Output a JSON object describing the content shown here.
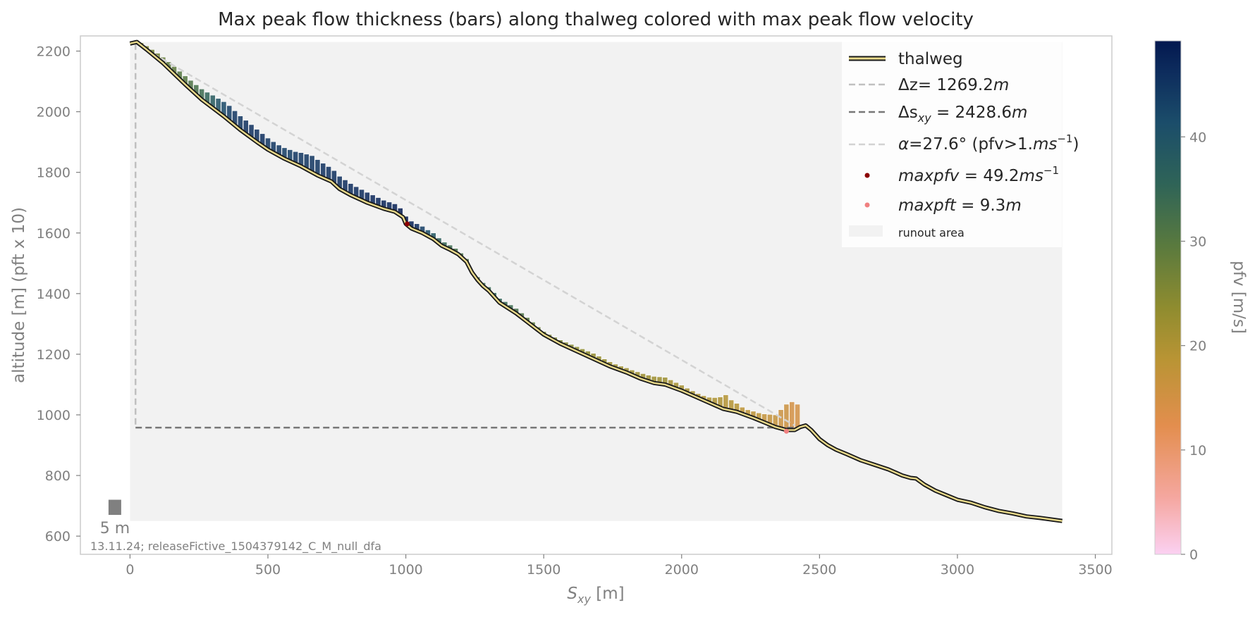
{
  "chart_data": {
    "type": "line",
    "title": "Max peak flow thickness (bars) along thalweg colored with max peak flow velocity",
    "xlabel": "S_xy [m]",
    "ylabel": "altitude [m] (pft x 10)",
    "xlim": [
      -180,
      3560
    ],
    "ylim": [
      540,
      2250
    ],
    "x_ticks": [
      "0",
      "500",
      "1000",
      "1500",
      "2000",
      "2500",
      "3000",
      "3500"
    ],
    "y_ticks": [
      "600",
      "800",
      "1000",
      "1200",
      "1400",
      "1600",
      "1800",
      "2000",
      "2200"
    ],
    "grid": false,
    "legend_position": "top-right",
    "runout_area": {
      "x": [
        0,
        3380
      ],
      "y": [
        650,
        2230
      ],
      "label": "runout area"
    },
    "thalweg": {
      "label": "thalweg",
      "x": [
        0,
        25,
        60,
        120,
        200,
        260,
        340,
        400,
        460,
        500,
        560,
        620,
        680,
        730,
        760,
        800,
        860,
        920,
        960,
        990,
        1000,
        1020,
        1060,
        1100,
        1130,
        1160,
        1190,
        1220,
        1240,
        1260,
        1280,
        1300,
        1340,
        1400,
        1450,
        1500,
        1560,
        1620,
        1680,
        1740,
        1800,
        1850,
        1900,
        1940,
        2000,
        2050,
        2100,
        2150,
        2200,
        2260,
        2300,
        2340,
        2380,
        2410,
        2430,
        2450,
        2470,
        2500,
        2530,
        2560,
        2600,
        2650,
        2700,
        2750,
        2800,
        2830,
        2850,
        2880,
        2920,
        2960,
        3000,
        3050,
        3100,
        3150,
        3200,
        3250,
        3300,
        3380
      ],
      "y": [
        2225,
        2230,
        2205,
        2160,
        2090,
        2040,
        1985,
        1940,
        1900,
        1875,
        1845,
        1820,
        1790,
        1770,
        1745,
        1725,
        1700,
        1680,
        1670,
        1652,
        1630,
        1615,
        1600,
        1580,
        1558,
        1545,
        1530,
        1505,
        1470,
        1445,
        1425,
        1410,
        1370,
        1335,
        1300,
        1265,
        1235,
        1210,
        1185,
        1160,
        1140,
        1120,
        1105,
        1100,
        1080,
        1060,
        1040,
        1020,
        1010,
        990,
        975,
        960,
        950,
        950,
        960,
        965,
        950,
        920,
        900,
        885,
        870,
        850,
        835,
        820,
        800,
        792,
        790,
        770,
        750,
        735,
        720,
        710,
        695,
        683,
        675,
        665,
        660,
        650
      ]
    },
    "bars": {
      "x": [
        20,
        40,
        60,
        80,
        100,
        120,
        140,
        160,
        180,
        200,
        220,
        240,
        260,
        280,
        300,
        320,
        340,
        360,
        380,
        400,
        420,
        440,
        460,
        480,
        500,
        520,
        540,
        560,
        580,
        600,
        620,
        640,
        660,
        680,
        700,
        720,
        740,
        760,
        780,
        800,
        820,
        840,
        860,
        880,
        900,
        920,
        940,
        960,
        980,
        1000,
        1020,
        1040,
        1060,
        1080,
        1100,
        1120,
        1140,
        1160,
        1180,
        1200,
        1220,
        1260,
        1280,
        1300,
        1320,
        1340,
        1360,
        1380,
        1400,
        1420,
        1440,
        1460,
        1480,
        1500,
        1520,
        1540,
        1560,
        1580,
        1600,
        1620,
        1640,
        1660,
        1680,
        1700,
        1720,
        1740,
        1760,
        1780,
        1800,
        1820,
        1840,
        1860,
        1880,
        1900,
        1920,
        1940,
        1960,
        1980,
        2000,
        2020,
        2040,
        2060,
        2080,
        2100,
        2120,
        2140,
        2160,
        2180,
        2200,
        2220,
        2240,
        2260,
        2280,
        2300,
        2320,
        2340,
        2360,
        2380,
        2400,
        2420
      ],
      "pft": [
        0.4,
        0.8,
        1.2,
        1.5,
        1.8,
        2.0,
        2.2,
        2.4,
        2.6,
        2.8,
        3.0,
        3.2,
        3.5,
        3.8,
        4.2,
        4.5,
        4.8,
        5.0,
        4.8,
        4.6,
        4.5,
        4.4,
        4.2,
        4.0,
        3.8,
        3.6,
        3.5,
        3.6,
        3.8,
        4.0,
        4.5,
        5.0,
        5.5,
        5.2,
        4.8,
        4.5,
        4.4,
        4.2,
        4.0,
        3.8,
        3.6,
        3.5,
        3.4,
        3.2,
        3.0,
        2.8,
        2.7,
        2.6,
        2.4,
        2.5,
        2.4,
        2.3,
        2.2,
        2.0,
        2.0,
        1.8,
        1.6,
        1.5,
        1.4,
        1.2,
        1.0,
        1.0,
        1.1,
        1.2,
        1.3,
        1.4,
        1.5,
        1.6,
        1.6,
        1.5,
        1.4,
        1.3,
        1.1,
        1.0,
        1.0,
        1.1,
        1.2,
        1.3,
        1.4,
        1.5,
        1.6,
        1.7,
        1.8,
        1.7,
        1.6,
        1.5,
        1.4,
        1.4,
        1.5,
        1.6,
        1.8,
        1.9,
        2.0,
        2.2,
        2.3,
        2.4,
        2.2,
        2.0,
        1.8,
        1.6,
        1.5,
        1.4,
        1.5,
        1.8,
        2.5,
        3.5,
        4.8,
        3.5,
        2.8,
        2.2,
        2.0,
        2.2,
        2.4,
        2.8,
        3.4,
        4.0,
        6.2,
        8.5,
        9.3,
        8.0
      ],
      "pfv": [
        22,
        23,
        24,
        25,
        25,
        26,
        27,
        27,
        28,
        28,
        29,
        30,
        31,
        33,
        35,
        37,
        39,
        41,
        42,
        42,
        43,
        43,
        43,
        43,
        42,
        42,
        42,
        41,
        41,
        42,
        42,
        42,
        42,
        42,
        43,
        43,
        43,
        43,
        44,
        44,
        44,
        44,
        45,
        45,
        45,
        46,
        46,
        47,
        48,
        49,
        47,
        44,
        41,
        38,
        36,
        34,
        32,
        31,
        30,
        30,
        29,
        30,
        31,
        32,
        33,
        33,
        32,
        31,
        30,
        29,
        28,
        27,
        26,
        25,
        24,
        24,
        24,
        23,
        23,
        22,
        22,
        22,
        21,
        21,
        21,
        20,
        20,
        20,
        20,
        20,
        20,
        20,
        20,
        20,
        20,
        20,
        19,
        19,
        19,
        19,
        19,
        18,
        18,
        18,
        18,
        18,
        17,
        17,
        17,
        16,
        16,
        16,
        16,
        15,
        15,
        15,
        14,
        14,
        13,
        13
      ]
    },
    "delta_z": {
      "label": "Δz = 1269.2m",
      "x": [
        20,
        20
      ],
      "y": [
        2225,
        958
      ]
    },
    "delta_s": {
      "label": "Δs_xy = 2428.6m",
      "x": [
        20,
        2420
      ],
      "y": [
        958,
        958
      ]
    },
    "alpha_line": {
      "label": "α=27.6° (pfv>1.ms⁻¹)",
      "x": [
        20,
        2410
      ],
      "y": [
        2225,
        965
      ]
    },
    "max_pfv_point": {
      "label": "maxpfv = 49.2ms⁻¹",
      "x": [
        1005
      ],
      "y": [
        1630
      ],
      "color": "#8b0000"
    },
    "max_pft_point": {
      "label": "maxpft = 9.3m",
      "x": [
        2380
      ],
      "y": [
        946
      ],
      "color": "#f08080"
    },
    "colorbar": {
      "label": "pfv [m/s]",
      "min": 0,
      "max": 49.2,
      "ticks": [
        "0",
        "10",
        "20",
        "30",
        "40"
      ]
    },
    "scale_bar": {
      "label": "5 m",
      "x": -55,
      "y_bottom": 670,
      "pft": 5
    },
    "footnote": "13.11.24; releaseFictive_1504379142_C_M_null_dfa"
  },
  "legend": {
    "thalweg": "thalweg",
    "delta_z_base": "Δz",
    "delta_z_value": "= 1269.2",
    "delta_z_unit": "m",
    "delta_s_base": "Δs",
    "delta_s_sub": "xy",
    "delta_s_value": " = 2428.6",
    "delta_s_unit": "m",
    "alpha_prefix": "α",
    "alpha_value": "=27.6° (pfv>1.",
    "alpha_unit": "ms",
    "alpha_exp": "−1",
    "alpha_close": ")",
    "maxpfv_name": "maxpfv",
    "maxpfv_value": " = 49.2",
    "maxpfv_unit": "ms",
    "maxpfv_exp": "−1",
    "maxpft_name": "maxpft",
    "maxpft_value": " = 9.3",
    "maxpft_unit": "m",
    "runout": "runout area"
  },
  "axis_text": {
    "xlabel_main": "S",
    "xlabel_sub": "xy",
    "xlabel_unit": " [m]"
  },
  "colors": {
    "thalweg_fill": "#e8d98a",
    "thalweg_edge": "#1a1a1a",
    "runout_area": "#f2f2f2",
    "dashed_light": "#c0c0c0",
    "dashed_dark": "#777777",
    "alpha_line": "#d3d3d3",
    "colormap": [
      "#fbd1f2",
      "#f5a7a0",
      "#e38e4e",
      "#b99434",
      "#8f8c2f",
      "#5a7a3e",
      "#2f6457",
      "#1b4d6a",
      "#0d2c5d",
      "#03184f"
    ]
  }
}
